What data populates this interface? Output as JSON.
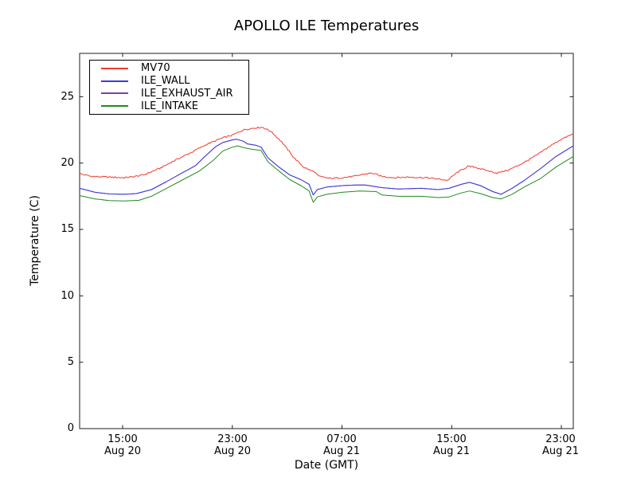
{
  "chart_data": {
    "type": "line",
    "title": "APOLLO ILE Temperatures",
    "xlabel": "Date (GMT)",
    "ylabel": "Temperature (C)",
    "x_unit": "hours since Aug 20 00:00 GMT",
    "xlim": [
      11.86,
      47.87
    ],
    "ylim": [
      0,
      28.3
    ],
    "grid": false,
    "frame_color": "#1c1c1c",
    "background_color": "#ffffff",
    "legend_position": "upper left",
    "y_ticks": [
      {
        "v": 0,
        "label": "0"
      },
      {
        "v": 5,
        "label": "5"
      },
      {
        "v": 10,
        "label": "10"
      },
      {
        "v": 15,
        "label": "15"
      },
      {
        "v": 20,
        "label": "20"
      },
      {
        "v": 25,
        "label": "25"
      }
    ],
    "x_ticks": [
      {
        "t": 15,
        "time": "15:00",
        "date": "Aug 20"
      },
      {
        "t": 23,
        "time": "23:00",
        "date": "Aug 20"
      },
      {
        "t": 31,
        "time": "07:00",
        "date": "Aug 21"
      },
      {
        "t": 39,
        "time": "15:00",
        "date": "Aug 21"
      },
      {
        "t": 47,
        "time": "23:00",
        "date": "Aug 21"
      }
    ],
    "draw_order": [
      2,
      3,
      1,
      0
    ],
    "series": [
      {
        "name": "MV70",
        "color": "#f03b30",
        "noise_amp": 0.055,
        "points": [
          [
            11.86,
            19.2
          ],
          [
            12.7,
            19.0
          ],
          [
            13.9,
            18.95
          ],
          [
            15.1,
            18.9
          ],
          [
            15.6,
            18.95
          ],
          [
            16.5,
            19.1
          ],
          [
            17.7,
            19.6
          ],
          [
            18.8,
            20.2
          ],
          [
            20.0,
            20.8
          ],
          [
            21.1,
            21.4
          ],
          [
            22.3,
            21.9
          ],
          [
            23.0,
            22.1
          ],
          [
            23.8,
            22.5
          ],
          [
            24.6,
            22.65
          ],
          [
            25.2,
            22.7
          ],
          [
            25.8,
            22.4
          ],
          [
            26.6,
            21.6
          ],
          [
            27.5,
            20.4
          ],
          [
            28.2,
            19.7
          ],
          [
            28.7,
            19.45
          ],
          [
            29.0,
            19.35
          ],
          [
            29.3,
            19.0
          ],
          [
            30.1,
            18.85
          ],
          [
            31.0,
            18.9
          ],
          [
            31.9,
            19.0
          ],
          [
            32.5,
            19.15
          ],
          [
            33.2,
            19.25
          ],
          [
            33.9,
            19.0
          ],
          [
            34.8,
            18.9
          ],
          [
            35.9,
            18.95
          ],
          [
            37.1,
            18.9
          ],
          [
            38.0,
            18.8
          ],
          [
            38.7,
            18.7
          ],
          [
            39.4,
            19.3
          ],
          [
            40.2,
            19.75
          ],
          [
            40.7,
            19.7
          ],
          [
            41.5,
            19.45
          ],
          [
            42.3,
            19.25
          ],
          [
            43.2,
            19.5
          ],
          [
            44.2,
            20.0
          ],
          [
            45.2,
            20.6
          ],
          [
            46.2,
            21.3
          ],
          [
            47.0,
            21.8
          ],
          [
            47.87,
            22.2
          ]
        ]
      },
      {
        "name": "ILE_WALL",
        "color": "#3b3be0",
        "points": [
          [
            11.86,
            18.1
          ],
          [
            13.0,
            17.8
          ],
          [
            14.0,
            17.68
          ],
          [
            15.1,
            17.65
          ],
          [
            16.0,
            17.7
          ],
          [
            17.1,
            18.0
          ],
          [
            18.2,
            18.6
          ],
          [
            19.4,
            19.3
          ],
          [
            20.3,
            19.8
          ],
          [
            21.0,
            20.5
          ],
          [
            21.8,
            21.25
          ],
          [
            22.3,
            21.55
          ],
          [
            23.0,
            21.75
          ],
          [
            23.3,
            21.8
          ],
          [
            23.8,
            21.65
          ],
          [
            24.1,
            21.45
          ],
          [
            24.7,
            21.35
          ],
          [
            25.1,
            21.2
          ],
          [
            25.6,
            20.4
          ],
          [
            26.4,
            19.7
          ],
          [
            27.2,
            19.1
          ],
          [
            28.0,
            18.75
          ],
          [
            28.6,
            18.4
          ],
          [
            28.9,
            17.6
          ],
          [
            29.2,
            18.0
          ],
          [
            29.9,
            18.2
          ],
          [
            31.0,
            18.3
          ],
          [
            32.0,
            18.35
          ],
          [
            32.7,
            18.35
          ],
          [
            33.9,
            18.15
          ],
          [
            35.1,
            18.05
          ],
          [
            36.8,
            18.1
          ],
          [
            38.0,
            18.0
          ],
          [
            38.8,
            18.1
          ],
          [
            39.7,
            18.4
          ],
          [
            40.3,
            18.55
          ],
          [
            41.1,
            18.3
          ],
          [
            42.0,
            17.85
          ],
          [
            42.6,
            17.65
          ],
          [
            43.4,
            18.1
          ],
          [
            44.3,
            18.7
          ],
          [
            45.5,
            19.6
          ],
          [
            46.6,
            20.5
          ],
          [
            47.87,
            21.3
          ]
        ]
      },
      {
        "name": "ILE_EXHAUST_AIR",
        "color": "#8040a0",
        "hidden_under": "ILE_WALL",
        "points": [
          [
            11.86,
            18.1
          ],
          [
            13.0,
            17.8
          ],
          [
            14.0,
            17.68
          ],
          [
            15.1,
            17.65
          ],
          [
            16.0,
            17.7
          ],
          [
            17.1,
            18.0
          ],
          [
            18.2,
            18.6
          ],
          [
            19.4,
            19.3
          ],
          [
            20.3,
            19.8
          ],
          [
            21.0,
            20.5
          ],
          [
            21.8,
            21.25
          ],
          [
            22.3,
            21.55
          ],
          [
            23.0,
            21.75
          ],
          [
            23.3,
            21.8
          ],
          [
            23.8,
            21.65
          ],
          [
            24.1,
            21.45
          ],
          [
            24.7,
            21.35
          ],
          [
            25.1,
            21.2
          ],
          [
            25.6,
            20.4
          ],
          [
            26.4,
            19.7
          ],
          [
            27.2,
            19.1
          ],
          [
            28.0,
            18.75
          ],
          [
            28.6,
            18.4
          ],
          [
            28.9,
            17.6
          ],
          [
            29.2,
            18.0
          ],
          [
            29.9,
            18.2
          ],
          [
            31.0,
            18.3
          ],
          [
            32.0,
            18.35
          ],
          [
            32.7,
            18.35
          ],
          [
            33.9,
            18.15
          ],
          [
            35.1,
            18.05
          ],
          [
            36.8,
            18.1
          ],
          [
            38.0,
            18.0
          ],
          [
            38.8,
            18.1
          ],
          [
            39.7,
            18.4
          ],
          [
            40.3,
            18.55
          ],
          [
            41.1,
            18.3
          ],
          [
            42.0,
            17.85
          ],
          [
            42.6,
            17.65
          ],
          [
            43.4,
            18.1
          ],
          [
            44.3,
            18.7
          ],
          [
            45.5,
            19.6
          ],
          [
            46.6,
            20.5
          ],
          [
            47.87,
            21.3
          ]
        ]
      },
      {
        "name": "ILE_INTAKE",
        "color": "#1f8b1f",
        "points": [
          [
            11.86,
            17.55
          ],
          [
            13.0,
            17.3
          ],
          [
            14.0,
            17.18
          ],
          [
            15.1,
            17.15
          ],
          [
            16.2,
            17.2
          ],
          [
            17.1,
            17.5
          ],
          [
            18.2,
            18.1
          ],
          [
            19.4,
            18.75
          ],
          [
            20.6,
            19.4
          ],
          [
            21.6,
            20.2
          ],
          [
            22.3,
            20.9
          ],
          [
            23.0,
            21.2
          ],
          [
            23.4,
            21.3
          ],
          [
            23.9,
            21.15
          ],
          [
            24.4,
            21.05
          ],
          [
            25.1,
            20.95
          ],
          [
            25.6,
            20.1
          ],
          [
            26.4,
            19.4
          ],
          [
            27.2,
            18.75
          ],
          [
            28.0,
            18.3
          ],
          [
            28.6,
            17.9
          ],
          [
            28.9,
            17.05
          ],
          [
            29.2,
            17.45
          ],
          [
            29.9,
            17.65
          ],
          [
            31.0,
            17.8
          ],
          [
            32.3,
            17.9
          ],
          [
            33.5,
            17.85
          ],
          [
            33.9,
            17.6
          ],
          [
            35.1,
            17.5
          ],
          [
            36.8,
            17.5
          ],
          [
            38.0,
            17.4
          ],
          [
            38.8,
            17.45
          ],
          [
            39.7,
            17.75
          ],
          [
            40.3,
            17.9
          ],
          [
            41.1,
            17.7
          ],
          [
            42.0,
            17.4
          ],
          [
            42.6,
            17.3
          ],
          [
            43.4,
            17.65
          ],
          [
            44.3,
            18.2
          ],
          [
            45.5,
            18.85
          ],
          [
            46.6,
            19.7
          ],
          [
            47.87,
            20.5
          ]
        ]
      }
    ]
  }
}
